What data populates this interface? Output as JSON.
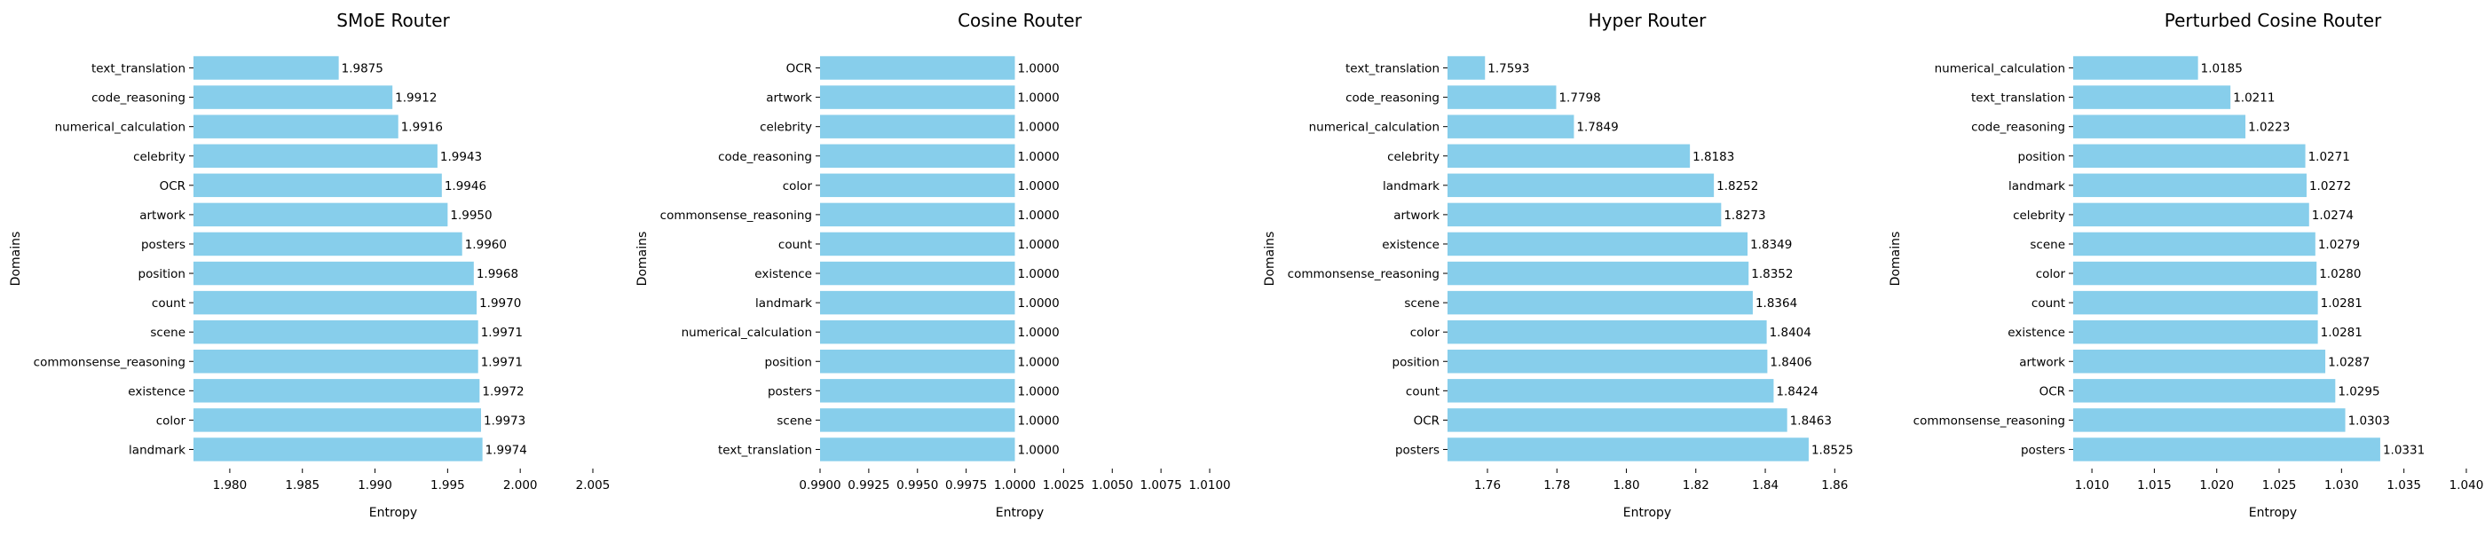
{
  "colors": {
    "bar": "#87CEEB",
    "text": "#000000",
    "tick": "#000000"
  },
  "chart_data": [
    {
      "type": "bar",
      "orientation": "horizontal",
      "title": "SMoE Router",
      "xlabel": "Entropy",
      "ylabel": "Domains",
      "xlim": [
        1.9775,
        2.005
      ],
      "xticks": [
        1.98,
        1.985,
        1.99,
        1.995,
        2.0,
        2.005
      ],
      "xtick_labels": [
        "1.980",
        "1.985",
        "1.990",
        "1.995",
        "2.000",
        "2.005"
      ],
      "categories": [
        "text_translation",
        "code_reasoning",
        "numerical_calculation",
        "celebrity",
        "OCR",
        "artwork",
        "posters",
        "position",
        "count",
        "scene",
        "commonsense_reasoning",
        "existence",
        "color",
        "landmark"
      ],
      "values": [
        1.9875,
        1.9912,
        1.9916,
        1.9943,
        1.9946,
        1.995,
        1.996,
        1.9968,
        1.997,
        1.9971,
        1.9971,
        1.9972,
        1.9973,
        1.9974
      ],
      "value_labels": [
        "1.9875",
        "1.9912",
        "1.9916",
        "1.9943",
        "1.9946",
        "1.9950",
        "1.9960",
        "1.9968",
        "1.9970",
        "1.9971",
        "1.9971",
        "1.9972",
        "1.9973",
        "1.9974"
      ],
      "grid": false
    },
    {
      "type": "bar",
      "orientation": "horizontal",
      "title": "Cosine Router",
      "xlabel": "Entropy",
      "ylabel": "Domains",
      "xlim": [
        0.99,
        1.0105
      ],
      "xticks": [
        0.99,
        0.9925,
        0.995,
        0.9975,
        1.0,
        1.0025,
        1.005,
        1.0075,
        1.01
      ],
      "xtick_labels": [
        "0.9900",
        "0.9925",
        "0.9950",
        "0.9975",
        "1.0000",
        "1.0025",
        "1.0050",
        "1.0075",
        "1.0100"
      ],
      "categories": [
        "OCR",
        "artwork",
        "celebrity",
        "code_reasoning",
        "color",
        "commonsense_reasoning",
        "count",
        "existence",
        "landmark",
        "numerical_calculation",
        "position",
        "posters",
        "scene",
        "text_translation"
      ],
      "values": [
        1.0,
        1.0,
        1.0,
        1.0,
        1.0,
        1.0,
        1.0,
        1.0,
        1.0,
        1.0,
        1.0,
        1.0,
        1.0,
        1.0
      ],
      "value_labels": [
        "1.0000",
        "1.0000",
        "1.0000",
        "1.0000",
        "1.0000",
        "1.0000",
        "1.0000",
        "1.0000",
        "1.0000",
        "1.0000",
        "1.0000",
        "1.0000",
        "1.0000",
        "1.0000"
      ],
      "grid": false
    },
    {
      "type": "bar",
      "orientation": "horizontal",
      "title": "Hyper Router",
      "xlabel": "Entropy",
      "ylabel": "Domains",
      "xlim": [
        1.7485,
        1.8635
      ],
      "xticks": [
        1.76,
        1.78,
        1.8,
        1.82,
        1.84,
        1.86
      ],
      "xtick_labels": [
        "1.76",
        "1.78",
        "1.80",
        "1.82",
        "1.84",
        "1.86"
      ],
      "categories": [
        "text_translation",
        "code_reasoning",
        "numerical_calculation",
        "celebrity",
        "landmark",
        "artwork",
        "existence",
        "commonsense_reasoning",
        "scene",
        "color",
        "position",
        "count",
        "OCR",
        "posters"
      ],
      "values": [
        1.7593,
        1.7798,
        1.7849,
        1.8183,
        1.8252,
        1.8273,
        1.8349,
        1.8352,
        1.8364,
        1.8404,
        1.8406,
        1.8424,
        1.8463,
        1.8525
      ],
      "value_labels": [
        "1.7593",
        "1.7798",
        "1.7849",
        "1.8183",
        "1.8252",
        "1.8273",
        "1.8349",
        "1.8352",
        "1.8364",
        "1.8404",
        "1.8406",
        "1.8424",
        "1.8463",
        "1.8525"
      ],
      "grid": false
    },
    {
      "type": "bar",
      "orientation": "horizontal",
      "title": "Perturbed Cosine Router",
      "xlabel": "Entropy",
      "ylabel": "Domains",
      "xlim": [
        1.0085,
        1.0405
      ],
      "xticks": [
        1.01,
        1.015,
        1.02,
        1.025,
        1.03,
        1.035,
        1.04
      ],
      "xtick_labels": [
        "1.010",
        "1.015",
        "1.020",
        "1.025",
        "1.030",
        "1.035",
        "1.040"
      ],
      "categories": [
        "numerical_calculation",
        "text_translation",
        "code_reasoning",
        "position",
        "landmark",
        "celebrity",
        "scene",
        "color",
        "count",
        "existence",
        "artwork",
        "OCR",
        "commonsense_reasoning",
        "posters"
      ],
      "values": [
        1.0185,
        1.0211,
        1.0223,
        1.0271,
        1.0272,
        1.0274,
        1.0279,
        1.028,
        1.0281,
        1.0281,
        1.0287,
        1.0295,
        1.0303,
        1.0331
      ],
      "value_labels": [
        "1.0185",
        "1.0211",
        "1.0223",
        "1.0271",
        "1.0272",
        "1.0274",
        "1.0279",
        "1.0280",
        "1.0281",
        "1.0281",
        "1.0287",
        "1.0295",
        "1.0303",
        "1.0331"
      ],
      "grid": false
    }
  ]
}
